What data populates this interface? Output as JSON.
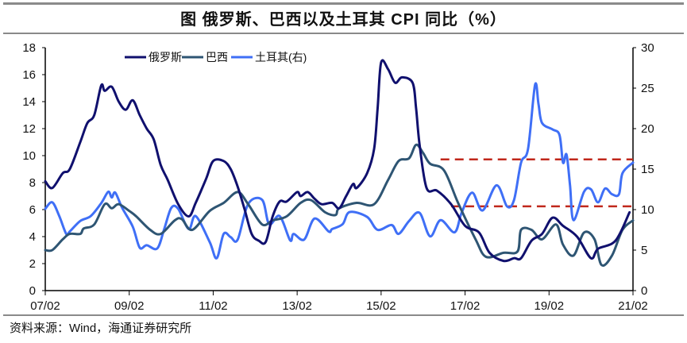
{
  "title": "图  俄罗斯、巴西以及土耳其 CPI 同比（%）",
  "source": "资料来源：Wind，海通证券研究所",
  "chart_data": {
    "type": "line",
    "title": "图  俄罗斯、巴西以及土耳其 CPI 同比（%）",
    "x_unit": "months since 2007-02",
    "x_range": [
      0,
      168
    ],
    "x_ticks": [
      {
        "m": 0,
        "label": "07/02"
      },
      {
        "m": 24,
        "label": "09/02"
      },
      {
        "m": 48,
        "label": "11/02"
      },
      {
        "m": 72,
        "label": "13/02"
      },
      {
        "m": 96,
        "label": "15/02"
      },
      {
        "m": 120,
        "label": "17/02"
      },
      {
        "m": 144,
        "label": "19/02"
      },
      {
        "m": 168,
        "label": "21/02"
      }
    ],
    "y_left": {
      "range": [
        0,
        18
      ],
      "ticks": [
        "0",
        "2",
        "4",
        "6",
        "8",
        "10",
        "12",
        "14",
        "16",
        "18"
      ]
    },
    "y_right": {
      "range": [
        0,
        30
      ],
      "ticks": [
        "0",
        "5",
        "10",
        "15",
        "20",
        "25",
        "30"
      ]
    },
    "grid": false,
    "legend_position": "top-center",
    "series": [
      {
        "name": "俄罗斯",
        "axis": "left",
        "color": "#10106e",
        "points": [
          [
            0,
            8.1
          ],
          [
            2,
            7.6
          ],
          [
            5,
            8.7
          ],
          [
            7,
            9.0
          ],
          [
            10,
            11.0
          ],
          [
            12,
            12.4
          ],
          [
            14,
            13.0
          ],
          [
            16,
            15.2
          ],
          [
            17,
            14.8
          ],
          [
            19,
            15.1
          ],
          [
            21,
            14.0
          ],
          [
            23,
            13.4
          ],
          [
            25,
            14.1
          ],
          [
            27,
            13.0
          ],
          [
            29,
            12.0
          ],
          [
            31,
            11.2
          ],
          [
            33,
            9.3
          ],
          [
            35,
            8.2
          ],
          [
            38,
            6.4
          ],
          [
            41,
            5.5
          ],
          [
            43,
            6.5
          ],
          [
            46,
            8.3
          ],
          [
            48,
            9.6
          ],
          [
            51,
            9.6
          ],
          [
            53,
            9.0
          ],
          [
            55,
            7.7
          ],
          [
            57,
            6.0
          ],
          [
            59,
            4.2
          ],
          [
            61,
            3.7
          ],
          [
            63,
            3.6
          ],
          [
            65,
            5.5
          ],
          [
            67,
            6.6
          ],
          [
            69,
            6.6
          ],
          [
            72,
            7.3
          ],
          [
            73,
            7.0
          ],
          [
            75,
            7.3
          ],
          [
            77,
            6.8
          ],
          [
            79,
            6.4
          ],
          [
            82,
            6.5
          ],
          [
            84,
            6.1
          ],
          [
            86,
            7.0
          ],
          [
            88,
            7.9
          ],
          [
            89,
            7.6
          ],
          [
            92,
            8.7
          ],
          [
            94,
            10.5
          ],
          [
            95,
            13.5
          ],
          [
            96,
            16.9
          ],
          [
            98,
            16.4
          ],
          [
            100,
            15.4
          ],
          [
            102,
            15.8
          ],
          [
            105,
            15.4
          ],
          [
            106,
            13.5
          ],
          [
            107,
            10.8
          ],
          [
            109,
            7.6
          ],
          [
            112,
            7.4
          ],
          [
            116,
            6.4
          ],
          [
            120,
            4.8
          ],
          [
            124,
            4.3
          ],
          [
            127,
            2.8
          ],
          [
            131,
            2.2
          ],
          [
            134,
            2.4
          ],
          [
            136,
            2.4
          ],
          [
            139,
            3.7
          ],
          [
            142,
            4.2
          ],
          [
            145,
            5.4
          ],
          [
            148,
            4.8
          ],
          [
            152,
            4.0
          ],
          [
            156,
            2.4
          ],
          [
            158,
            3.1
          ],
          [
            163,
            3.7
          ],
          [
            167,
            5.8
          ]
        ]
      },
      {
        "name": "巴西",
        "axis": "left",
        "color": "#2e5573",
        "points": [
          [
            0,
            3.0
          ],
          [
            2,
            3.0
          ],
          [
            5,
            3.8
          ],
          [
            7,
            4.2
          ],
          [
            10,
            4.2
          ],
          [
            11,
            4.6
          ],
          [
            14,
            4.9
          ],
          [
            17,
            6.4
          ],
          [
            19,
            6.1
          ],
          [
            21,
            6.4
          ],
          [
            24,
            5.9
          ],
          [
            26,
            5.5
          ],
          [
            30,
            4.5
          ],
          [
            33,
            4.2
          ],
          [
            37,
            5.2
          ],
          [
            39,
            5.3
          ],
          [
            42,
            4.5
          ],
          [
            47,
            5.9
          ],
          [
            51,
            6.5
          ],
          [
            55,
            7.3
          ],
          [
            58,
            6.4
          ],
          [
            62,
            4.9
          ],
          [
            65,
            5.2
          ],
          [
            69,
            5.5
          ],
          [
            73,
            6.5
          ],
          [
            76,
            6.7
          ],
          [
            80,
            5.8
          ],
          [
            83,
            5.6
          ],
          [
            84,
            6.1
          ],
          [
            89,
            6.5
          ],
          [
            94,
            6.4
          ],
          [
            98,
            8.2
          ],
          [
            101,
            9.6
          ],
          [
            104,
            9.8
          ],
          [
            106,
            10.8
          ],
          [
            108,
            10.2
          ],
          [
            110,
            9.4
          ],
          [
            114,
            8.9
          ],
          [
            118,
            6.5
          ],
          [
            123,
            3.8
          ],
          [
            126,
            2.5
          ],
          [
            131,
            2.8
          ],
          [
            135,
            2.9
          ],
          [
            136,
            4.5
          ],
          [
            139,
            4.5
          ],
          [
            142,
            3.8
          ],
          [
            146,
            4.9
          ],
          [
            148,
            3.4
          ],
          [
            151,
            2.6
          ],
          [
            154,
            4.3
          ],
          [
            157,
            3.8
          ],
          [
            159,
            1.9
          ],
          [
            162,
            2.6
          ],
          [
            165,
            4.5
          ],
          [
            168,
            5.2
          ]
        ]
      },
      {
        "name": "土耳其(右)",
        "axis": "right",
        "color": "#3f6ff6",
        "points": [
          [
            0,
            10.1
          ],
          [
            2,
            10.9
          ],
          [
            4,
            9.2
          ],
          [
            6,
            7.0
          ],
          [
            7,
            7.3
          ],
          [
            10,
            8.6
          ],
          [
            13,
            9.2
          ],
          [
            16,
            10.8
          ],
          [
            18,
            12.2
          ],
          [
            19,
            11.5
          ],
          [
            20,
            12.1
          ],
          [
            22,
            10.2
          ],
          [
            25,
            7.9
          ],
          [
            27,
            5.3
          ],
          [
            29,
            5.6
          ],
          [
            32,
            5.2
          ],
          [
            34,
            7.6
          ],
          [
            36,
            10.2
          ],
          [
            38,
            10.1
          ],
          [
            41,
            7.6
          ],
          [
            43,
            9.2
          ],
          [
            47,
            6.0
          ],
          [
            49,
            4.0
          ],
          [
            51,
            7.0
          ],
          [
            53,
            6.6
          ],
          [
            55,
            6.3
          ],
          [
            58,
            10.7
          ],
          [
            62,
            11.2
          ],
          [
            64,
            8.2
          ],
          [
            67,
            9.2
          ],
          [
            70,
            6.2
          ],
          [
            71,
            7.0
          ],
          [
            74,
            6.3
          ],
          [
            77,
            8.9
          ],
          [
            81,
            7.3
          ],
          [
            82,
            7.6
          ],
          [
            85,
            8.2
          ],
          [
            87,
            9.7
          ],
          [
            92,
            9.1
          ],
          [
            95,
            7.5
          ],
          [
            99,
            8.1
          ],
          [
            101,
            7.0
          ],
          [
            104,
            8.6
          ],
          [
            107,
            9.6
          ],
          [
            110,
            6.7
          ],
          [
            113,
            8.7
          ],
          [
            117,
            7.2
          ],
          [
            119,
            9.6
          ],
          [
            122,
            12.1
          ],
          [
            125,
            9.9
          ],
          [
            129,
            13.0
          ],
          [
            132,
            10.4
          ],
          [
            134,
            11.2
          ],
          [
            136,
            15.8
          ],
          [
            138,
            17.5
          ],
          [
            140,
            25.4
          ],
          [
            141,
            23.0
          ],
          [
            142,
            20.7
          ],
          [
            145,
            19.9
          ],
          [
            147,
            19.2
          ],
          [
            148,
            15.8
          ],
          [
            149,
            16.8
          ],
          [
            150,
            13.0
          ],
          [
            151,
            8.7
          ],
          [
            154,
            12.2
          ],
          [
            156,
            12.5
          ],
          [
            158,
            10.9
          ],
          [
            160,
            12.6
          ],
          [
            162,
            11.9
          ],
          [
            164,
            11.9
          ],
          [
            165,
            14.5
          ],
          [
            168,
            15.8
          ]
        ]
      }
    ],
    "reference_lines": [
      {
        "axis": "right",
        "value": 16.2,
        "from_m": 113,
        "to_m": 168,
        "style": "dashed",
        "color": "#c0281c"
      },
      {
        "axis": "right",
        "value": 10.4,
        "from_m": 116,
        "to_m": 168,
        "style": "dashed",
        "color": "#c0281c"
      }
    ]
  }
}
